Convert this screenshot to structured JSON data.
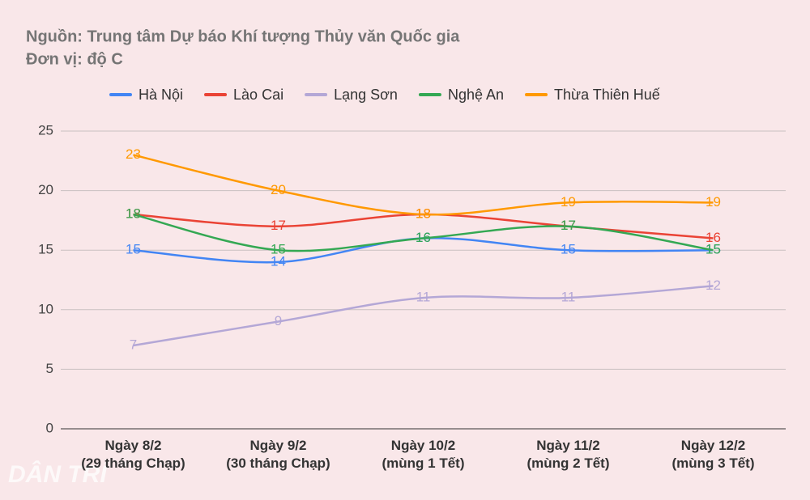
{
  "chart_data": {
    "type": "line",
    "title": "Nguồn: Trung tâm Dự báo Khí tượng Thủy văn Quốc gia",
    "subtitle": "Đơn vị: độ C",
    "watermark": "DÂN TRÍ",
    "categories": [
      [
        "Ngày 8/2",
        "(29 tháng Chạp)"
      ],
      [
        "Ngày 9/2",
        "(30 tháng Chạp)"
      ],
      [
        "Ngày 10/2",
        "(mùng 1 Tết)"
      ],
      [
        "Ngày 11/2",
        "(mùng 2 Tết)"
      ],
      [
        "Ngày 12/2",
        "(mùng 3 Tết)"
      ]
    ],
    "series": [
      {
        "name": "Hà Nội",
        "color": "#4285f4",
        "values": [
          15,
          14,
          16,
          15,
          15
        ]
      },
      {
        "name": "Lào Cai",
        "color": "#ea4335",
        "values": [
          18,
          17,
          18,
          17,
          16
        ]
      },
      {
        "name": "Lạng Sơn",
        "color": "#b4a7d6",
        "values": [
          7,
          9,
          11,
          11,
          12
        ]
      },
      {
        "name": "Nghệ An",
        "color": "#34a853",
        "values": [
          18,
          15,
          16,
          17,
          15
        ]
      },
      {
        "name": "Thừa Thiên Huế",
        "color": "#ff9900",
        "values": [
          23,
          20,
          18,
          19,
          19
        ]
      }
    ],
    "ylim": [
      0,
      25
    ],
    "yticks": [
      0,
      5,
      10,
      15,
      20,
      25
    ],
    "grid": true,
    "smooth": true,
    "legend": "top"
  }
}
